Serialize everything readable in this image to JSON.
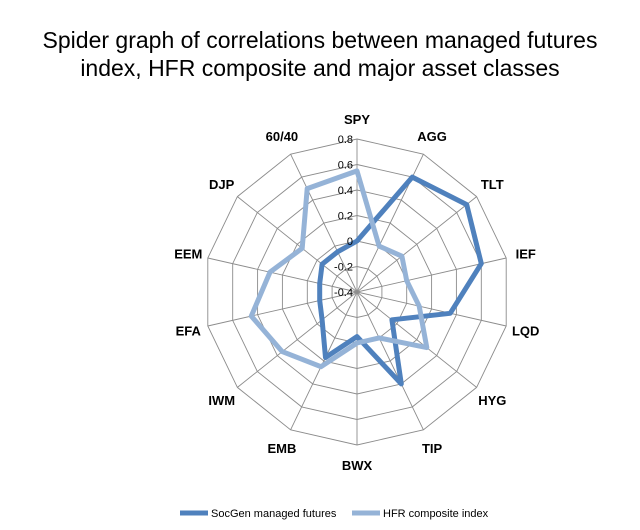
{
  "title_line1": "Spider graph of correlations between managed futures",
  "title_line2": "index, HFR composite and major asset classes",
  "chart_data": {
    "type": "radar",
    "title": "Spider graph of correlations between managed futures index, HFR composite and major asset classes",
    "categories": [
      "SPY",
      "AGG",
      "TLT",
      "IEF",
      "LQD",
      "HYG",
      "TIP",
      "BWX",
      "EMB",
      "IWM",
      "EFA",
      "EEM",
      "DJP",
      "60/40"
    ],
    "rlim": [
      -0.4,
      0.8
    ],
    "ticks": [
      0.8,
      0.6,
      0.4,
      0.2,
      0,
      -0.2,
      -0.4
    ],
    "tick_labels": [
      "0.8",
      "0.6",
      "0.4",
      "0.2",
      "0",
      "-0.2",
      "-0.4"
    ],
    "grid": true,
    "legend_position": "bottom",
    "series": [
      {
        "name": "SocGen managed futures",
        "color": "#4F81BD",
        "values": [
          0.0,
          0.6,
          0.7,
          0.6,
          0.35,
          -0.05,
          0.4,
          -0.05,
          0.17,
          -0.05,
          -0.1,
          -0.1,
          -0.05,
          -0.05
        ]
      },
      {
        "name": "HFR composite index",
        "color": "#95B3D7",
        "values": [
          0.55,
          0.0,
          0.05,
          0.0,
          0.1,
          0.3,
          0.0,
          0.0,
          0.25,
          0.35,
          0.45,
          0.3,
          0.15,
          0.5
        ]
      }
    ]
  }
}
